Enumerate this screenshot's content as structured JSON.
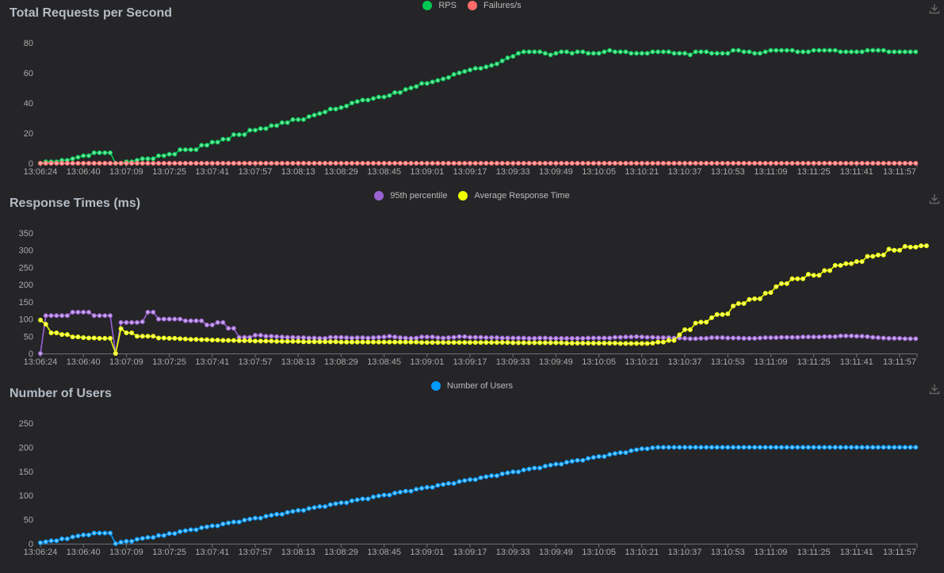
{
  "chart_data": [
    {
      "type": "line",
      "title": "Total Requests per Second",
      "x_tick_labels": [
        "13:06:24",
        "13:06:40",
        "13:07:09",
        "13:07:25",
        "13:07:41",
        "13:07:57",
        "13:08:13",
        "13:08:29",
        "13:08:45",
        "13:09:01",
        "13:09:17",
        "13:09:33",
        "13:09:49",
        "13:10:05",
        "13:10:21",
        "13:10:37",
        "13:10:53",
        "13:11:09",
        "13:11:25",
        "13:11:41",
        "13:11:57"
      ],
      "y_ticks": [
        0,
        20,
        40,
        60,
        80
      ],
      "ylim": [
        0,
        80
      ],
      "legend_position": "top-center",
      "grid": false,
      "series": [
        {
          "name": "RPS",
          "color": "#00c853",
          "values": [
            0,
            1,
            1,
            1,
            2,
            2,
            3,
            4,
            5,
            5,
            7,
            7,
            7,
            7,
            0,
            0,
            1,
            1,
            2,
            3,
            3,
            3,
            5,
            5,
            6,
            6,
            9,
            9,
            9,
            9,
            12,
            12,
            14,
            14,
            16,
            16,
            19,
            19,
            19,
            22,
            22,
            23,
            23,
            25,
            25,
            27,
            27,
            29,
            29,
            29,
            31,
            32,
            33,
            34,
            36,
            36,
            37,
            38,
            40,
            41,
            42,
            42,
            43,
            44,
            44,
            45,
            47,
            47,
            49,
            50,
            51,
            53,
            53,
            54,
            55,
            56,
            57,
            59,
            60,
            61,
            62,
            63,
            63,
            64,
            65,
            66,
            68,
            70,
            71,
            73,
            74,
            74,
            74,
            74,
            73,
            72,
            73,
            74,
            74,
            73,
            74,
            74,
            73,
            73,
            73,
            74,
            75,
            74,
            74,
            74,
            73,
            73,
            73,
            73,
            74,
            74,
            74,
            74,
            73,
            73,
            73,
            72,
            74,
            74,
            74,
            73,
            73,
            73,
            73,
            75,
            75,
            74,
            74,
            73,
            73,
            74,
            75,
            75,
            75,
            75,
            75,
            74,
            74,
            74,
            75,
            75,
            75,
            75,
            75,
            74,
            74,
            74,
            74,
            74,
            75,
            75,
            75,
            75,
            74,
            74,
            74,
            74,
            74,
            74
          ]
        },
        {
          "name": "Failures/s",
          "color": "#ff6b6b",
          "values": [
            0,
            0,
            0,
            0,
            0,
            0,
            0,
            0,
            0,
            0,
            0,
            0,
            0,
            0,
            0,
            0,
            0,
            0,
            0,
            0,
            0,
            0,
            0,
            0,
            0,
            0,
            0,
            0,
            0,
            0,
            0,
            0,
            0,
            0,
            0,
            0,
            0,
            0,
            0,
            0,
            0,
            0,
            0,
            0,
            0,
            0,
            0,
            0,
            0,
            0,
            0,
            0,
            0,
            0,
            0,
            0,
            0,
            0,
            0,
            0,
            0,
            0,
            0,
            0,
            0,
            0,
            0,
            0,
            0,
            0,
            0,
            0,
            0,
            0,
            0,
            0,
            0,
            0,
            0,
            0,
            0,
            0,
            0,
            0,
            0,
            0,
            0,
            0,
            0,
            0,
            0,
            0,
            0,
            0,
            0,
            0,
            0,
            0,
            0,
            0,
            0,
            0,
            0,
            0,
            0,
            0,
            0,
            0,
            0,
            0,
            0,
            0,
            0,
            0,
            0,
            0,
            0,
            0,
            0,
            0,
            0,
            0,
            0,
            0,
            0,
            0,
            0,
            0,
            0,
            0,
            0,
            0,
            0,
            0,
            0,
            0,
            0,
            0,
            0,
            0,
            0,
            0,
            0,
            0,
            0,
            0,
            0,
            0,
            0,
            0,
            0,
            0,
            0,
            0,
            0,
            0,
            0,
            0,
            0,
            0,
            0,
            0,
            0,
            0
          ]
        }
      ]
    },
    {
      "type": "line",
      "title": "Response Times (ms)",
      "x_tick_labels": [
        "13:06:24",
        "13:06:40",
        "13:07:09",
        "13:07:25",
        "13:07:41",
        "13:07:57",
        "13:08:13",
        "13:08:29",
        "13:08:45",
        "13:09:01",
        "13:09:17",
        "13:09:33",
        "13:09:49",
        "13:10:05",
        "13:10:21",
        "13:10:37",
        "13:10:53",
        "13:11:09",
        "13:11:25",
        "13:11:41",
        "13:11:57"
      ],
      "y_ticks": [
        0,
        50,
        100,
        150,
        200,
        250,
        300,
        350
      ],
      "ylim": [
        0,
        350
      ],
      "legend_position": "top-center",
      "grid": false,
      "series": [
        {
          "name": "95th percentile",
          "color": "#9b62d4",
          "values": [
            0,
            110,
            110,
            110,
            110,
            110,
            120,
            120,
            120,
            120,
            110,
            110,
            110,
            110,
            0,
            90,
            90,
            90,
            90,
            92,
            120,
            120,
            100,
            100,
            100,
            100,
            100,
            95,
            95,
            95,
            95,
            83,
            83,
            90,
            90,
            73,
            73,
            47,
            47,
            47,
            53,
            53,
            50,
            50,
            49,
            48,
            47,
            47,
            46,
            46,
            45,
            45,
            44,
            44,
            47,
            47,
            47,
            46,
            45,
            46,
            46,
            45,
            46,
            47,
            48,
            50,
            48,
            46,
            45,
            44,
            45,
            48,
            48,
            48,
            46,
            45,
            46,
            47,
            49,
            49,
            47,
            47,
            47,
            46,
            46,
            46,
            45,
            45,
            45,
            45,
            45,
            44,
            44,
            45,
            45,
            44,
            44,
            44,
            44,
            44,
            44,
            44,
            45,
            45,
            45,
            45,
            45,
            47,
            47,
            48,
            48,
            49,
            48,
            47,
            47,
            46,
            46,
            46,
            45,
            45,
            44,
            43,
            43,
            44,
            44,
            46,
            46,
            46,
            45,
            45,
            45,
            44,
            44,
            44,
            45,
            46,
            46,
            46,
            47,
            47,
            47,
            47,
            48,
            48,
            48,
            48,
            49,
            49,
            49,
            51,
            51,
            51,
            50,
            50,
            49,
            47,
            46,
            45,
            44,
            44,
            44,
            43,
            43,
            43
          ]
        },
        {
          "name": "Average Response Time",
          "color": "#eeff00",
          "values": [
            97,
            85,
            60,
            60,
            55,
            55,
            48,
            48,
            46,
            45,
            45,
            44,
            44,
            44,
            0,
            72,
            60,
            60,
            50,
            50,
            50,
            50,
            45,
            45,
            44,
            44,
            43,
            42,
            41,
            41,
            40,
            40,
            39,
            39,
            38,
            38,
            38,
            37,
            37,
            37,
            36,
            36,
            36,
            36,
            35,
            35,
            35,
            35,
            35,
            34,
            34,
            34,
            34,
            34,
            34,
            34,
            33,
            33,
            33,
            33,
            33,
            33,
            33,
            33,
            33,
            33,
            33,
            33,
            33,
            33,
            33,
            32,
            32,
            32,
            32,
            32,
            32,
            32,
            32,
            32,
            32,
            32,
            32,
            32,
            32,
            32,
            32,
            32,
            31,
            31,
            31,
            31,
            31,
            31,
            31,
            31,
            31,
            31,
            30,
            30,
            30,
            30,
            30,
            30,
            30,
            30,
            30,
            30,
            29,
            29,
            29,
            29,
            29,
            29,
            30,
            33,
            33,
            38,
            38,
            54,
            69,
            69,
            88,
            91,
            91,
            104,
            113,
            113,
            115,
            138,
            145,
            145,
            157,
            159,
            159,
            175,
            177,
            194,
            203,
            203,
            217,
            217,
            217,
            230,
            227,
            227,
            241,
            241,
            256,
            256,
            261,
            261,
            267,
            267,
            282,
            282,
            286,
            286,
            303,
            300,
            300,
            311,
            309,
            309,
            313,
            313
          ]
        }
      ]
    },
    {
      "type": "line",
      "title": "Number of Users",
      "x_tick_labels": [
        "13:06:24",
        "13:06:40",
        "13:07:09",
        "13:07:25",
        "13:07:41",
        "13:07:57",
        "13:08:13",
        "13:08:29",
        "13:08:45",
        "13:09:01",
        "13:09:17",
        "13:09:33",
        "13:09:49",
        "13:10:05",
        "13:10:21",
        "13:10:37",
        "13:10:53",
        "13:11:09",
        "13:11:25",
        "13:11:41",
        "13:11:57"
      ],
      "y_ticks": [
        0,
        50,
        100,
        150,
        200,
        250
      ],
      "ylim": [
        0,
        250
      ],
      "legend_position": "top-center",
      "grid": false,
      "series": [
        {
          "name": "Number of Users",
          "color": "#0099ff",
          "values": [
            2,
            4,
            6,
            6,
            10,
            10,
            14,
            16,
            18,
            18,
            22,
            22,
            22,
            22,
            0,
            3,
            5,
            5,
            9,
            11,
            13,
            13,
            17,
            17,
            21,
            21,
            25,
            27,
            29,
            29,
            33,
            35,
            37,
            37,
            41,
            43,
            45,
            45,
            49,
            51,
            53,
            53,
            57,
            59,
            61,
            61,
            65,
            67,
            69,
            69,
            73,
            75,
            77,
            77,
            81,
            83,
            85,
            85,
            89,
            91,
            93,
            93,
            97,
            99,
            101,
            101,
            105,
            107,
            109,
            109,
            113,
            115,
            117,
            117,
            121,
            123,
            125,
            125,
            129,
            131,
            133,
            133,
            137,
            139,
            141,
            141,
            145,
            147,
            149,
            149,
            153,
            155,
            157,
            157,
            161,
            163,
            165,
            165,
            169,
            171,
            173,
            173,
            177,
            179,
            181,
            181,
            185,
            187,
            189,
            189,
            193,
            195,
            197,
            197,
            199,
            200,
            200,
            200,
            200,
            200,
            200,
            200,
            200,
            200,
            200,
            200,
            200,
            200,
            200,
            200,
            200,
            200,
            200,
            200,
            200,
            200,
            200,
            200,
            200,
            200,
            200,
            200,
            200,
            200,
            200,
            200,
            200,
            200,
            200,
            200,
            200,
            200,
            200,
            200,
            200,
            200,
            200,
            200,
            200,
            200,
            200,
            200,
            200,
            200
          ]
        }
      ]
    }
  ],
  "icons": {
    "download": "download-icon"
  }
}
